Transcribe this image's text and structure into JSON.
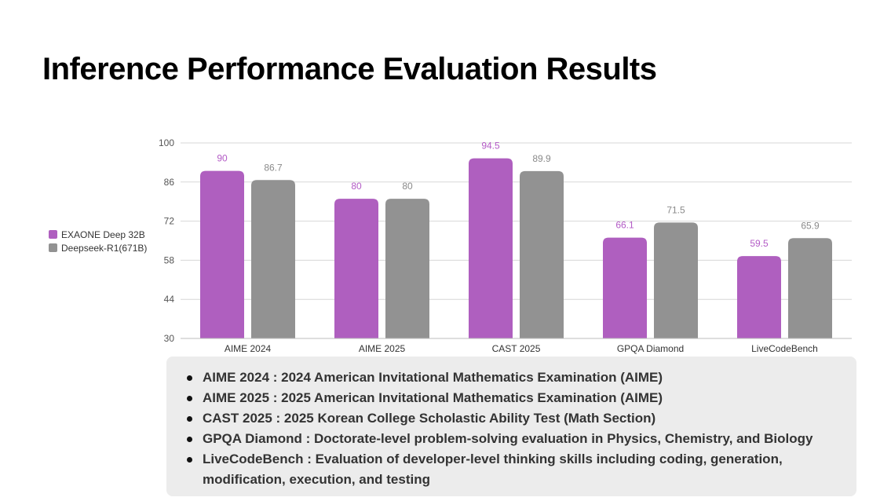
{
  "title": "Inference Performance Evaluation Results",
  "colors": {
    "exaone": "#af5fbf",
    "deepseek": "#929292",
    "exaone_label": "#b35bc6",
    "deepseek_label": "#8a8a8a",
    "grid": "#d7d7d7",
    "notes_bg": "#ececec"
  },
  "chart_data": {
    "type": "bar",
    "title": "",
    "xlabel": "",
    "ylabel": "",
    "ylim": [
      30,
      100
    ],
    "yticks": [
      30,
      44,
      58,
      72,
      86,
      100
    ],
    "grid": true,
    "legend_position": "left",
    "categories": [
      "AIME 2024",
      "AIME 2025",
      "CAST 2025",
      "GPQA Diamond",
      "LiveCodeBench"
    ],
    "series": [
      {
        "name": "EXAONE Deep 32B",
        "values": [
          90,
          80,
          94.5,
          66.1,
          59.5
        ],
        "labels": [
          "90",
          "80",
          "94.5",
          "66.1",
          "59.5"
        ]
      },
      {
        "name": "Deepseek-R1(671B)",
        "values": [
          86.7,
          80,
          89.9,
          71.5,
          65.9
        ],
        "labels": [
          "86.7",
          "80",
          "89.9",
          "71.5",
          "65.9"
        ]
      }
    ]
  },
  "notes": [
    "AIME 2024 : 2024 American Invitational Mathematics Examination (AIME)",
    "AIME 2025 : 2025 American Invitational Mathematics Examination (AIME)",
    "CAST 2025 : 2025 Korean College Scholastic Ability Test (Math Section)",
    "GPQA Diamond :  Doctorate-level problem-solving evaluation in Physics, Chemistry, and Biology",
    "LiveCodeBench : Evaluation of developer-level thinking skills including coding, generation, modification, execution, and testing"
  ]
}
